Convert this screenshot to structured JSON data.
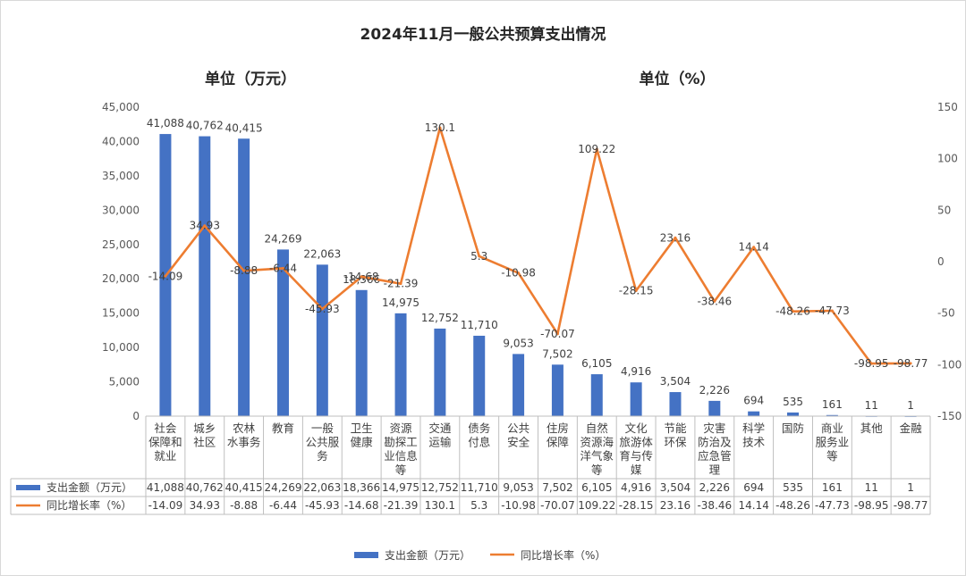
{
  "chart_data": {
    "type": "bar",
    "title": "2024年11月一般公共预算支出情况",
    "left_unit": "单位（万元）",
    "right_unit": "单位（%）",
    "categories": [
      [
        "社会",
        "保障和",
        "就业"
      ],
      [
        "城乡",
        "社区"
      ],
      [
        "农林",
        "水事务"
      ],
      [
        "教育"
      ],
      [
        "一般",
        "公共服",
        "务"
      ],
      [
        "卫生",
        "健康"
      ],
      [
        "资源",
        "勘探工",
        "业信息",
        "等"
      ],
      [
        "交通",
        "运输"
      ],
      [
        "债务",
        "付息"
      ],
      [
        "公共",
        "安全"
      ],
      [
        "住房",
        "保障"
      ],
      [
        "自然",
        "资源海",
        "洋气象",
        "等"
      ],
      [
        "文化",
        "旅游体",
        "育与传",
        "媒"
      ],
      [
        "节能",
        "环保"
      ],
      [
        "灾害",
        "防治及",
        "应急管",
        "理"
      ],
      [
        "科学",
        "技术"
      ],
      [
        "国防"
      ],
      [
        "商业",
        "服务业",
        "等"
      ],
      [
        "其他"
      ],
      [
        "金融"
      ]
    ],
    "series": [
      {
        "name": "支出金额（万元）",
        "type": "bar",
        "axis": "left",
        "color": "#4472C4",
        "values": [
          41088,
          40762,
          40415,
          24269,
          22063,
          18366,
          14975,
          12752,
          11710,
          9053,
          7502,
          6105,
          4916,
          3504,
          2226,
          694,
          535,
          161,
          11,
          1
        ],
        "labels": [
          "41,088",
          "40,762",
          "40,415",
          "24,269",
          "22,063",
          "18,366",
          "14,975",
          "12,752",
          "11,710",
          "9,053",
          "7,502",
          "6,105",
          "4,916",
          "3,504",
          "2,226",
          "694",
          "535",
          "161",
          "11",
          "1"
        ]
      },
      {
        "name": "同比增长率（%）",
        "type": "line",
        "axis": "right",
        "color": "#ED7D31",
        "values": [
          -14.09,
          34.93,
          -8.88,
          -6.44,
          -45.93,
          -14.68,
          -21.39,
          130.1,
          5.3,
          -10.98,
          -70.07,
          109.22,
          -28.15,
          23.16,
          -38.46,
          14.14,
          -48.26,
          -47.73,
          -98.95,
          -98.77
        ],
        "labels": [
          "-14.09",
          "34.93",
          "-8.88",
          "-6.44",
          "-45.93",
          "-14.68",
          "-21.39",
          "130.1",
          "5.3",
          "-10.98",
          "-70.07",
          "109.22",
          "-28.15",
          "23.16",
          "-38.46",
          "14.14",
          "-48.26",
          "-47.73",
          "-98.95",
          "-98.77"
        ]
      }
    ],
    "y_left": {
      "min": 0,
      "max": 45000,
      "ticks": [
        "0",
        "5,000",
        "10,000",
        "15,000",
        "20,000",
        "25,000",
        "30,000",
        "35,000",
        "40,000",
        "45,000"
      ]
    },
    "y_right": {
      "min": -150,
      "max": 150,
      "ticks": [
        "-150",
        "-100",
        "-50",
        "0",
        "50",
        "100",
        "150"
      ]
    },
    "grid": false,
    "data_table": true,
    "legend_position": "bottom"
  }
}
